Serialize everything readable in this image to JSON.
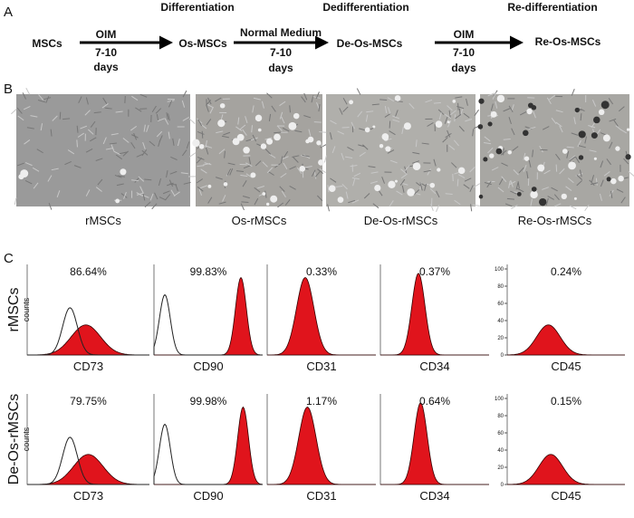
{
  "panels": {
    "a": "A",
    "b": "B",
    "c": "C"
  },
  "scheme": {
    "stages": [
      "MSCs",
      "Os-MSCs",
      "De-Os-MSCs",
      "Re-Os-MSCs"
    ],
    "phases": [
      "Differentiation",
      "Dedifferentiation",
      "Re-differentiation"
    ],
    "arrows": [
      {
        "medium": "OIM",
        "time": "7-10",
        "unit": "days"
      },
      {
        "medium": "Normal Medium",
        "time": "7-10",
        "unit": "days"
      },
      {
        "medium": "OIM",
        "time": "7-10",
        "unit": "days"
      }
    ]
  },
  "micrographs": [
    "rMSCs",
    "Os-rMSCs",
    "De-Os-rMSCs",
    "Re-Os-rMSCs"
  ],
  "flow": {
    "markers": [
      "CD73",
      "CD90",
      "CD31",
      "CD34",
      "CD45"
    ],
    "axis_label": "counts",
    "yticks": [
      0,
      20,
      40,
      60,
      80,
      100
    ],
    "rows": [
      {
        "name": "rMSCs",
        "percents": [
          "86.64%",
          "99.83%",
          "0.33%",
          "0.37%",
          "0.24%"
        ]
      },
      {
        "name": "De-Os-rMSCs",
        "percents": [
          "79.75%",
          "99.98%",
          "1.17%",
          "0.64%",
          "0.15%"
        ]
      }
    ]
  }
}
